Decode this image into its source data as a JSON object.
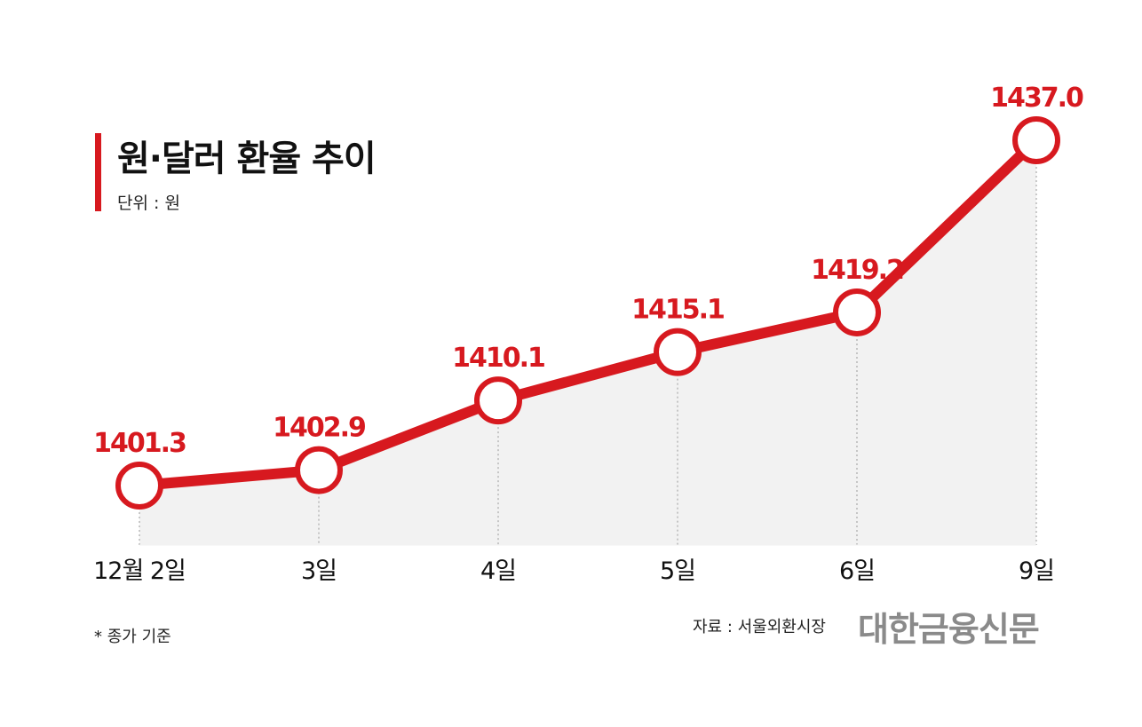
{
  "title": "원·달러 환율 추이",
  "unit_note": "단위 : 원",
  "footnote": "* 종가 기준",
  "source": "자료 : 서울외환시장",
  "brand": "대한금융신문",
  "colors": {
    "accent": "#d7191f",
    "area": "#f2f2f2",
    "guide": "#9a9a9a",
    "text": "#111111",
    "brand": "#8a8a8a"
  },
  "chart_data": {
    "type": "line",
    "categories": [
      "12월 2일",
      "3일",
      "4일",
      "5일",
      "6일",
      "9일"
    ],
    "values": [
      1401.3,
      1402.9,
      1410.1,
      1415.1,
      1419.2,
      1437.0
    ],
    "value_labels": [
      "1401.3",
      "1402.9",
      "1410.1",
      "1415.1",
      "1419.2",
      "1437.0"
    ],
    "title": "원·달러 환율 추이",
    "ylabel": "",
    "xlabel": "",
    "grid": false,
    "area_fill": true,
    "data_labels": true
  }
}
